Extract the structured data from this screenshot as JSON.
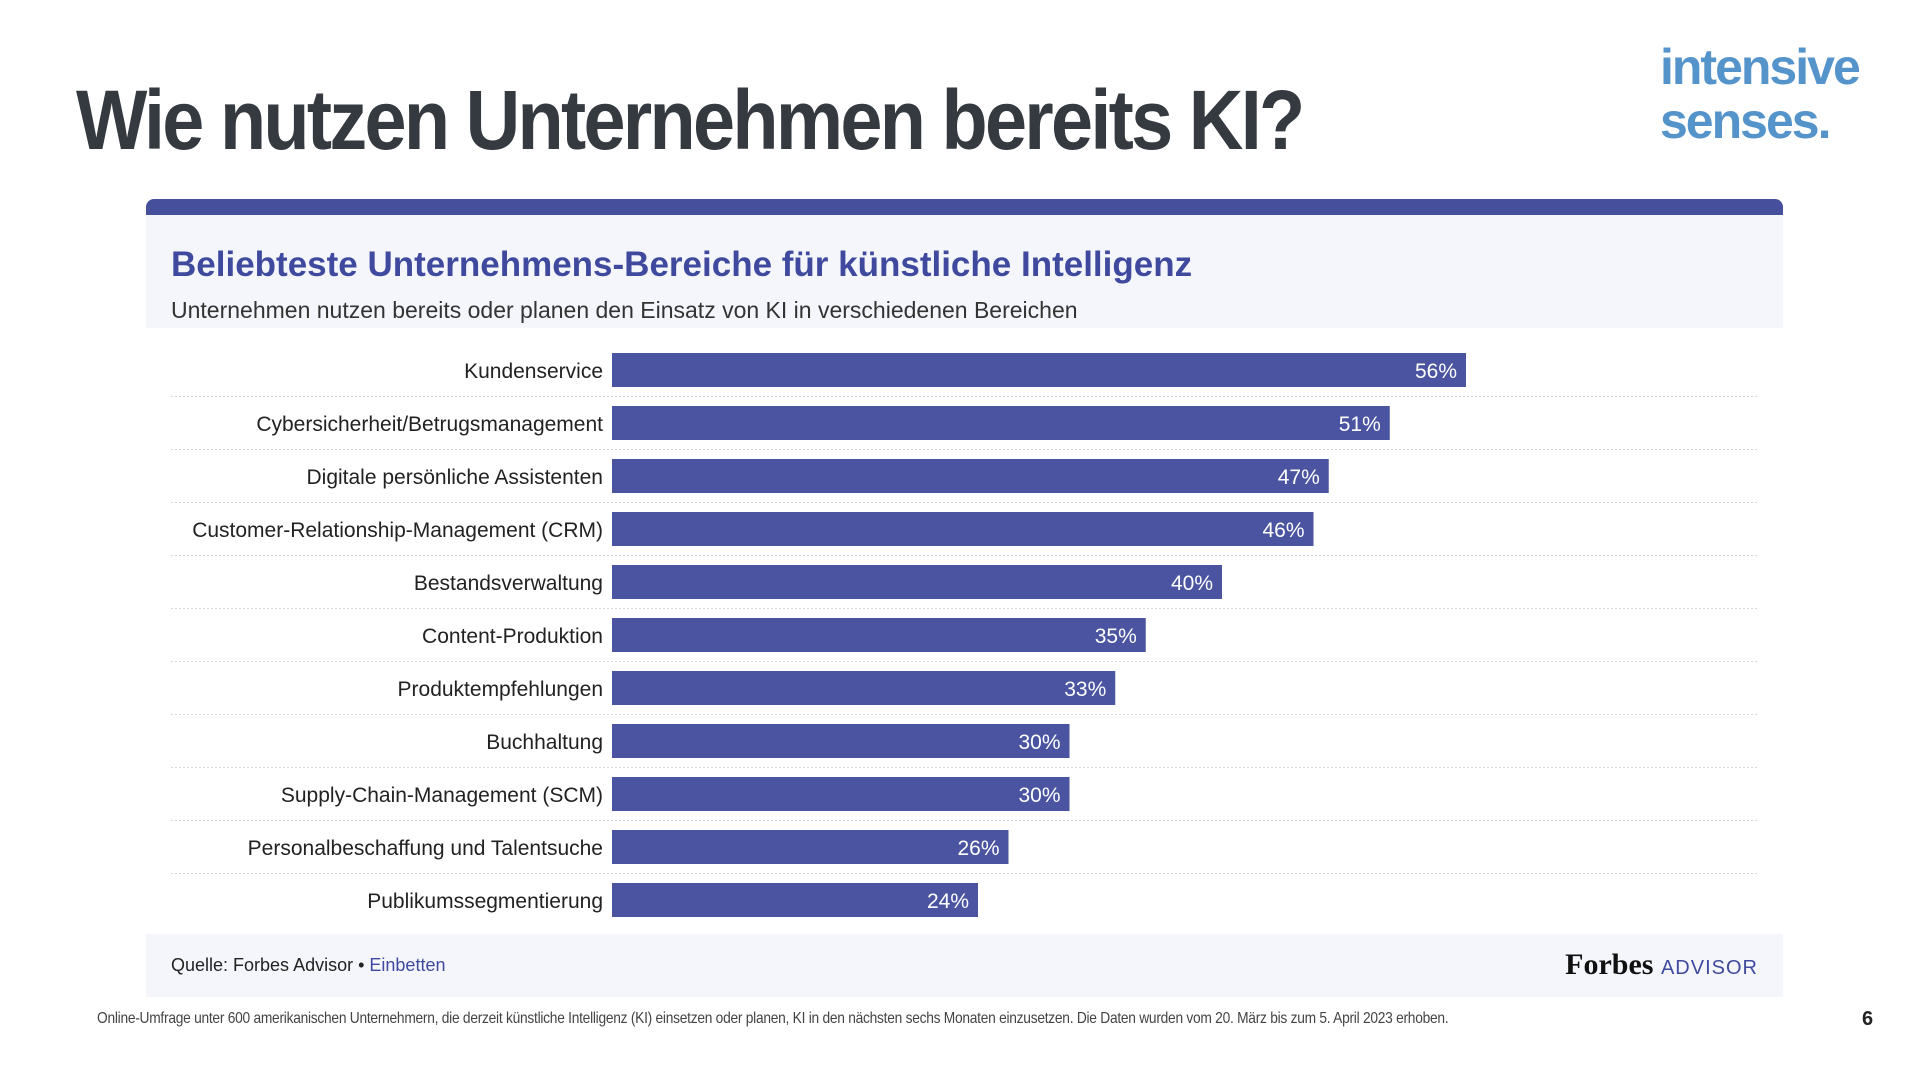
{
  "slide": {
    "title": "Wie nutzen Unternehmen bereits KI?",
    "logo": "intensive senses.",
    "logo_line1": "intensive",
    "logo_line2": "senses.",
    "footnote": "Online-Umfrage unter 600 amerikanischen Unternehmern, die derzeit künstliche Intelligenz (KI) einsetzen oder planen, KI in den nächsten sechs Monaten einzusetzen. Die Daten wurden vom 20. März bis zum 5. April 2023 erhoben.",
    "page_number": "6"
  },
  "card": {
    "source_label": "Quelle: Forbes Advisor •",
    "embed_link": "Einbetten",
    "brand": "Forbes",
    "brand_suffix": "ADVISOR"
  },
  "colors": {
    "bar": "#4a54a0",
    "title": "#3f4a9e",
    "logo": "#5594cb"
  },
  "chart_data": {
    "type": "bar",
    "orientation": "horizontal",
    "title": "Beliebteste Unternehmens-Bereiche für künstliche Intelligenz",
    "subtitle": "Unternehmen nutzen bereits oder planen den Einsatz von KI in verschiedenen Bereichen",
    "categories": [
      "Kundenservice",
      "Cybersicherheit/Betrugsmanagement",
      "Digitale persönliche Assistenten",
      "Customer-Relationship-Management (CRM)",
      "Bestandsverwaltung",
      "Content-Produktion",
      "Produktempfehlungen",
      "Buchhaltung",
      "Supply-Chain-Management (SCM)",
      "Personalbeschaffung und Talentsuche",
      "Publikumssegmentierung"
    ],
    "values": [
      56,
      51,
      47,
      46,
      40,
      35,
      33,
      30,
      30,
      26,
      24
    ],
    "labels": [
      "56%",
      "51%",
      "47%",
      "46%",
      "40%",
      "35%",
      "33%",
      "30%",
      "30%",
      "26%",
      "24%"
    ],
    "unit": "%",
    "grid": false
  }
}
